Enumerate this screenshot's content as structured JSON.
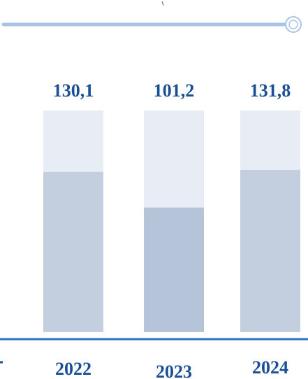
{
  "colors": {
    "accent": "#2e73c2",
    "track_line": "#a9c4e6",
    "bar_background": "#e8edf5",
    "bar_fill_light": "#c3cfdf",
    "bar_fill_mid": "#b5c4d8",
    "text": "#1a4f96"
  },
  "chart_data": {
    "type": "bar",
    "categories": [
      "2022",
      "2023",
      "2024"
    ],
    "values": [
      130.1,
      101.2,
      131.8
    ],
    "value_labels": [
      "130,1",
      "101,2",
      "131,8"
    ],
    "ylim": [
      0,
      180
    ],
    "grid": false,
    "title": "",
    "xlabel": "",
    "ylabel": ""
  }
}
